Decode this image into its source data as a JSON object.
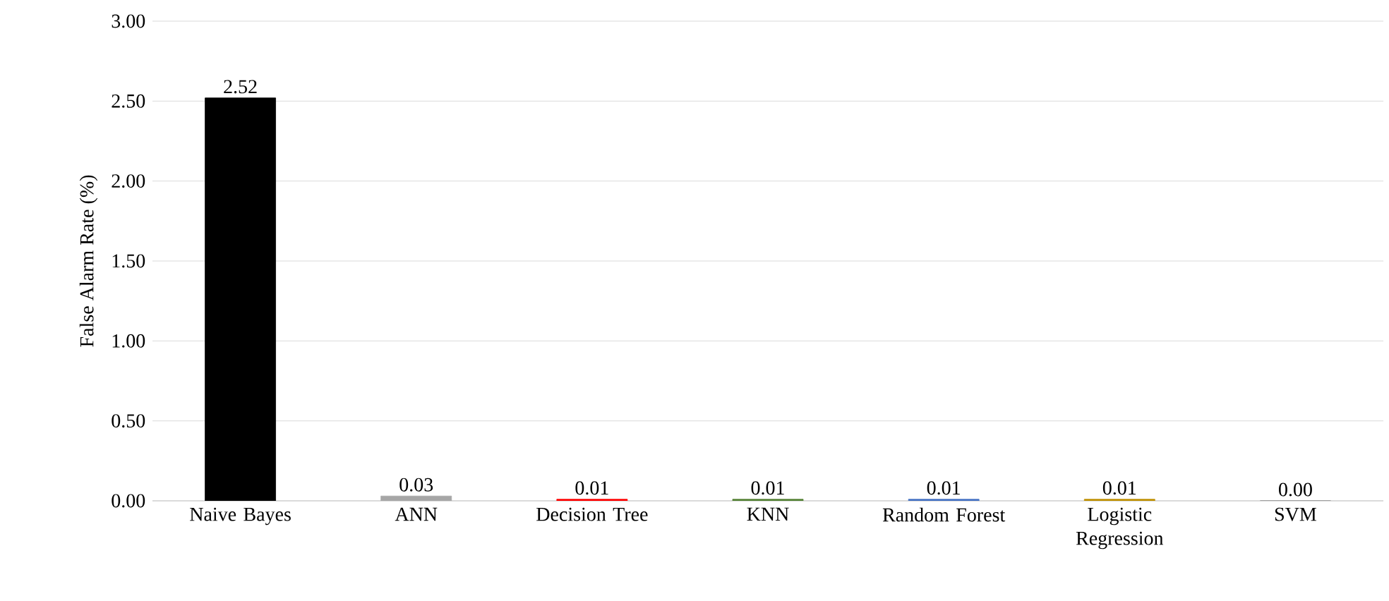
{
  "chart_data": {
    "type": "bar",
    "ylabel": "False Alarm Rate (%)",
    "categories": [
      "Naive Bayes",
      "ANN",
      "Decision Tree",
      "KNN",
      "Random Forest",
      "Logistic Regression",
      "SVM"
    ],
    "values": [
      2.52,
      0.03,
      0.01,
      0.01,
      0.01,
      0.01,
      0.0
    ],
    "value_labels": [
      "2.52",
      "0.03",
      "0.01",
      "0.01",
      "0.01",
      "0.01",
      "0.00"
    ],
    "colors": [
      "#000000",
      "#a6a6a6",
      "#ff0000",
      "#548235",
      "#4472c4",
      "#bf9000",
      "#7f7f7f"
    ],
    "ylim": [
      0,
      3
    ],
    "yticks": [
      {
        "value": 0,
        "label": "0.00"
      },
      {
        "value": 0.5,
        "label": "0.50"
      },
      {
        "value": 1,
        "label": "1.00"
      },
      {
        "value": 1.5,
        "label": "1.50"
      },
      {
        "value": 2,
        "label": "2.00"
      },
      {
        "value": 2.5,
        "label": "2.50"
      },
      {
        "value": 3,
        "label": "3.00"
      }
    ],
    "grid": "y"
  }
}
